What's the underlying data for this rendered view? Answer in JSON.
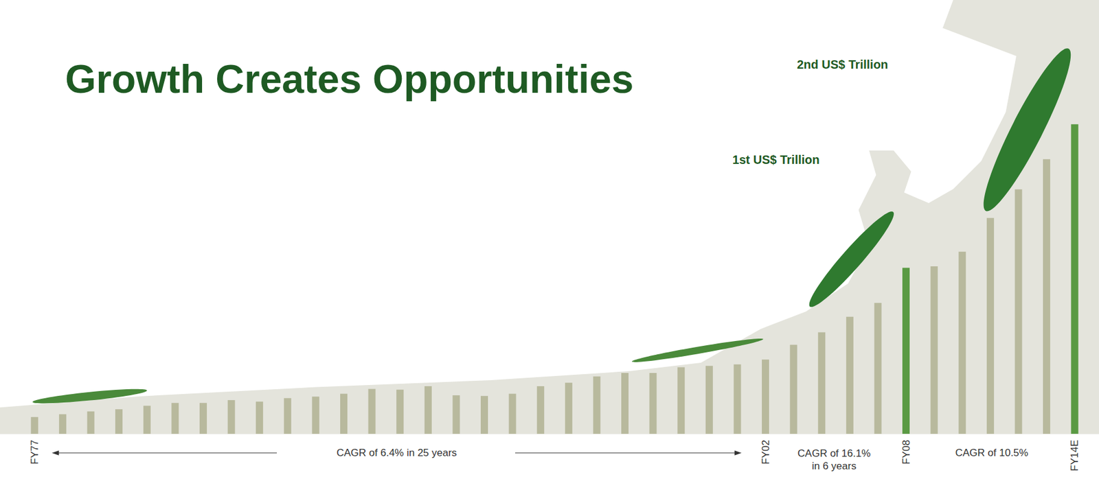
{
  "chart_data": {
    "type": "bar",
    "title": "Growth Creates Opportunities",
    "annotations": [
      "1st US$ Trillion",
      "2nd US$ Trillion",
      "CAGR of 6.4% in 25 years",
      "CAGR of 16.1% in 6 years",
      "CAGR of 10.5%"
    ],
    "categories": [
      "FY77",
      null,
      null,
      null,
      null,
      null,
      null,
      null,
      null,
      null,
      null,
      null,
      null,
      null,
      null,
      null,
      null,
      null,
      null,
      null,
      null,
      null,
      null,
      null,
      null,
      null,
      "FY02",
      null,
      null,
      null,
      null,
      "FY08",
      null,
      null,
      null,
      null,
      null,
      "FY14E"
    ],
    "values": [
      101,
      118,
      135,
      148,
      169,
      186,
      186,
      203,
      194,
      215,
      224,
      241,
      270,
      266,
      287,
      232,
      228,
      241,
      287,
      308,
      346,
      367,
      367,
      401,
      409,
      418,
      447,
      536,
      612,
      705,
      789,
      1000,
      1009,
      1097,
      1300,
      1473,
      1654,
      1865
    ],
    "colors": [
      "#b8b99d",
      "#b8b99d",
      "#b8b99d",
      "#b8b99d",
      "#b8b99d",
      "#b8b99d",
      "#b8b99d",
      "#b8b99d",
      "#b8b99d",
      "#b8b99d",
      "#b8b99d",
      "#b8b99d",
      "#b8b99d",
      "#b8b99d",
      "#b8b99d",
      "#b8b99d",
      "#b8b99d",
      "#b8b99d",
      "#b8b99d",
      "#b8b99d",
      "#b8b99d",
      "#b8b99d",
      "#b8b99d",
      "#b8b99d",
      "#b8b99d",
      "#b8b99d",
      "#b8b99d",
      "#b8b99d",
      "#b8b99d",
      "#b8b99d",
      "#b8b99d",
      "#5a9a43",
      "#b8b99d",
      "#b8b99d",
      "#b8b99d",
      "#b8b99d",
      "#b8b99d",
      "#5a9a43"
    ],
    "ylim": [
      0,
      2000
    ],
    "grid": false,
    "data_labels": false,
    "tick_labels": "x"
  }
}
